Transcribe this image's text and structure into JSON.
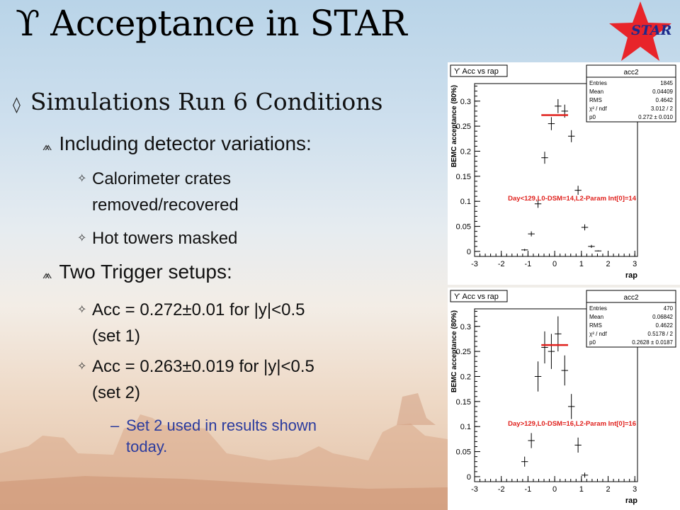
{
  "slide": {
    "title_symbol": "ϒ",
    "title_text": "Acceptance in STAR",
    "logo_text": "STAR",
    "bullets": {
      "level1": "Simulations Run 6 Conditions",
      "sub_a": "Including detector variations:",
      "sub_a_items": [
        "Calorimeter crates",
        "removed/recovered",
        "Hot towers masked"
      ],
      "sub_b": "Two Trigger setups:",
      "sub_b_items": [
        "Acc = 0.272±0.01 for |y|<0.5",
        "(set 1)",
        "Acc = 0.263±0.019 for |y|<0.5",
        "(set 2)"
      ],
      "note_dash": "–",
      "note": [
        "Set 2 used in results shown",
        "today."
      ]
    },
    "markers": {
      "l1": "◊",
      "l2": "⩕",
      "l3": "✧"
    }
  },
  "colors": {
    "fit_line": "#e0201c",
    "annotation": "#e0201c",
    "note_text": "#2b3b9e",
    "star": "#e8242a"
  },
  "chart_data": [
    {
      "type": "scatter",
      "title": "ϒ Acc vs rap",
      "xlabel": "rap",
      "ylabel": "BEMC acceptance (80%)",
      "xlim": [
        -3,
        3.1
      ],
      "ylim": [
        -0.01,
        0.335
      ],
      "xticks": [
        "-3",
        "-2",
        "-1",
        "0",
        "1",
        "2",
        "3"
      ],
      "yticks": [
        "0",
        "0.05",
        "0.1",
        "0.15",
        "0.2",
        "0.25",
        "0.3"
      ],
      "annotation": "Day<129,L0-DSM=14,L2-Param Int[0]=14",
      "stats": {
        "name": "acc2",
        "rows": [
          [
            "Entries",
            "1845"
          ],
          [
            "Mean",
            "0.04409"
          ],
          [
            "RMS",
            "0.4642"
          ],
          [
            "χ² / ndf",
            "3.012 / 2"
          ],
          [
            "p0",
            "0.272 ± 0.010"
          ]
        ]
      },
      "fit": {
        "x": [
          -0.5,
          0.5
        ],
        "y": 0.272
      },
      "points": [
        {
          "x": -1.125,
          "y": 0.003,
          "err": 0.002
        },
        {
          "x": -0.875,
          "y": 0.035,
          "err": 0.005
        },
        {
          "x": -0.625,
          "y": 0.095,
          "err": 0.008
        },
        {
          "x": -0.375,
          "y": 0.187,
          "err": 0.012
        },
        {
          "x": -0.125,
          "y": 0.255,
          "err": 0.013
        },
        {
          "x": 0.125,
          "y": 0.29,
          "err": 0.014
        },
        {
          "x": 0.375,
          "y": 0.28,
          "err": 0.013
        },
        {
          "x": 0.625,
          "y": 0.23,
          "err": 0.012
        },
        {
          "x": 0.875,
          "y": 0.122,
          "err": 0.009
        },
        {
          "x": 1.125,
          "y": 0.048,
          "err": 0.006
        },
        {
          "x": 1.375,
          "y": 0.01,
          "err": 0.003
        },
        {
          "x": 1.625,
          "y": 0.001,
          "err": 0.001
        }
      ]
    },
    {
      "type": "scatter",
      "title": "ϒ Acc vs rap",
      "xlabel": "rap",
      "ylabel": "BEMC acceptance (80%)",
      "xlim": [
        -3,
        3.1
      ],
      "ylim": [
        -0.01,
        0.335
      ],
      "xticks": [
        "-3",
        "-2",
        "-1",
        "0",
        "1",
        "2",
        "3"
      ],
      "yticks": [
        "0",
        "0.05",
        "0.1",
        "0.15",
        "0.2",
        "0.25",
        "0.3"
      ],
      "annotation": "Day>129,L0-DSM=16,L2-Param Int[0]=16",
      "stats": {
        "name": "acc2",
        "rows": [
          [
            "Entries",
            "470"
          ],
          [
            "Mean",
            "0.06842"
          ],
          [
            "RMS",
            "0.4622"
          ],
          [
            "χ² / ndf",
            "0.5178 / 2"
          ],
          [
            "p0",
            "0.2628 ± 0.0187"
          ]
        ]
      },
      "fit": {
        "x": [
          -0.5,
          0.5
        ],
        "y": 0.2628
      },
      "points": [
        {
          "x": -1.125,
          "y": 0.03,
          "err": 0.01
        },
        {
          "x": -0.875,
          "y": 0.072,
          "err": 0.015
        },
        {
          "x": -0.625,
          "y": 0.2,
          "err": 0.03
        },
        {
          "x": -0.375,
          "y": 0.258,
          "err": 0.032
        },
        {
          "x": -0.125,
          "y": 0.25,
          "err": 0.035
        },
        {
          "x": 0.125,
          "y": 0.285,
          "err": 0.035
        },
        {
          "x": 0.375,
          "y": 0.212,
          "err": 0.03
        },
        {
          "x": 0.625,
          "y": 0.14,
          "err": 0.025
        },
        {
          "x": 0.875,
          "y": 0.063,
          "err": 0.015
        },
        {
          "x": 1.125,
          "y": 0.003,
          "err": 0.005
        }
      ]
    }
  ]
}
